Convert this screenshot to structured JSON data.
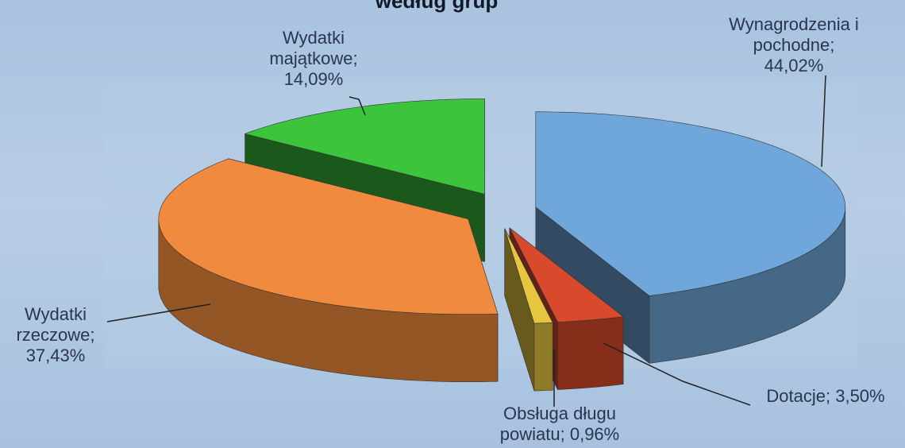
{
  "chart_data": {
    "type": "pie3d",
    "title": "według grup",
    "categories": [
      "Wynagrodzenia i pochodne;",
      "Dotacje;",
      "Obsługa długu powiatu;",
      "Wydatki rzeczowe;",
      "Wydatki majątkowe;"
    ],
    "values": [
      44.02,
      3.5,
      0.96,
      37.43,
      14.09
    ],
    "value_labels": [
      "44,02%",
      "3,50%",
      "0,96%",
      "37,43%",
      "14,09%"
    ],
    "colors": [
      "#6fa7da",
      "#d94a2c",
      "#e6c63e",
      "#f08a3e",
      "#3dc43d"
    ]
  }
}
